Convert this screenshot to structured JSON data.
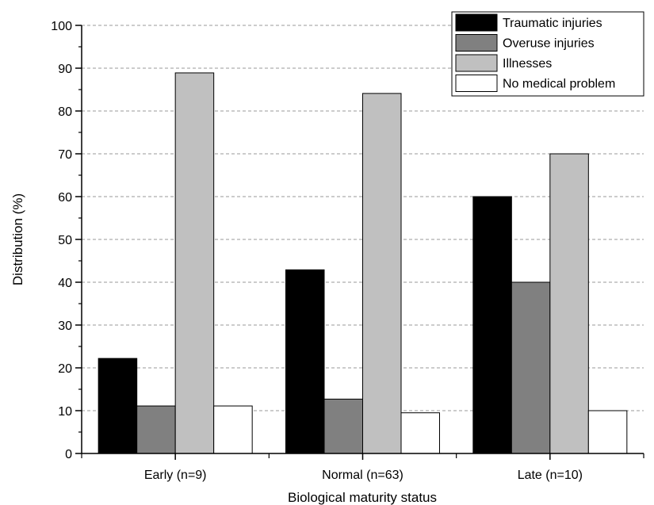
{
  "chart_data": {
    "type": "bar",
    "title": "",
    "xlabel": "Biological maturity status",
    "ylabel": "Distribution (%)",
    "ylim": [
      0,
      100
    ],
    "yticks": [
      0,
      10,
      20,
      30,
      40,
      50,
      60,
      70,
      80,
      90,
      100
    ],
    "grid": "horizontal dashed",
    "legend_position": "top-right",
    "categories": [
      "Early (n=9)",
      "Normal (n=63)",
      "Late (n=10)"
    ],
    "series": [
      {
        "name": "Traumatic injuries",
        "color": "#000000",
        "values": [
          22.2,
          42.9,
          60
        ]
      },
      {
        "name": "Overuse injuries",
        "color": "#808080",
        "values": [
          11.1,
          12.7,
          40
        ]
      },
      {
        "name": "Illnesses",
        "color": "#c0c0c0",
        "values": [
          88.9,
          84.1,
          70
        ]
      },
      {
        "name": "No medical problem",
        "color": "#ffffff",
        "values": [
          11.1,
          9.5,
          10
        ]
      }
    ]
  }
}
